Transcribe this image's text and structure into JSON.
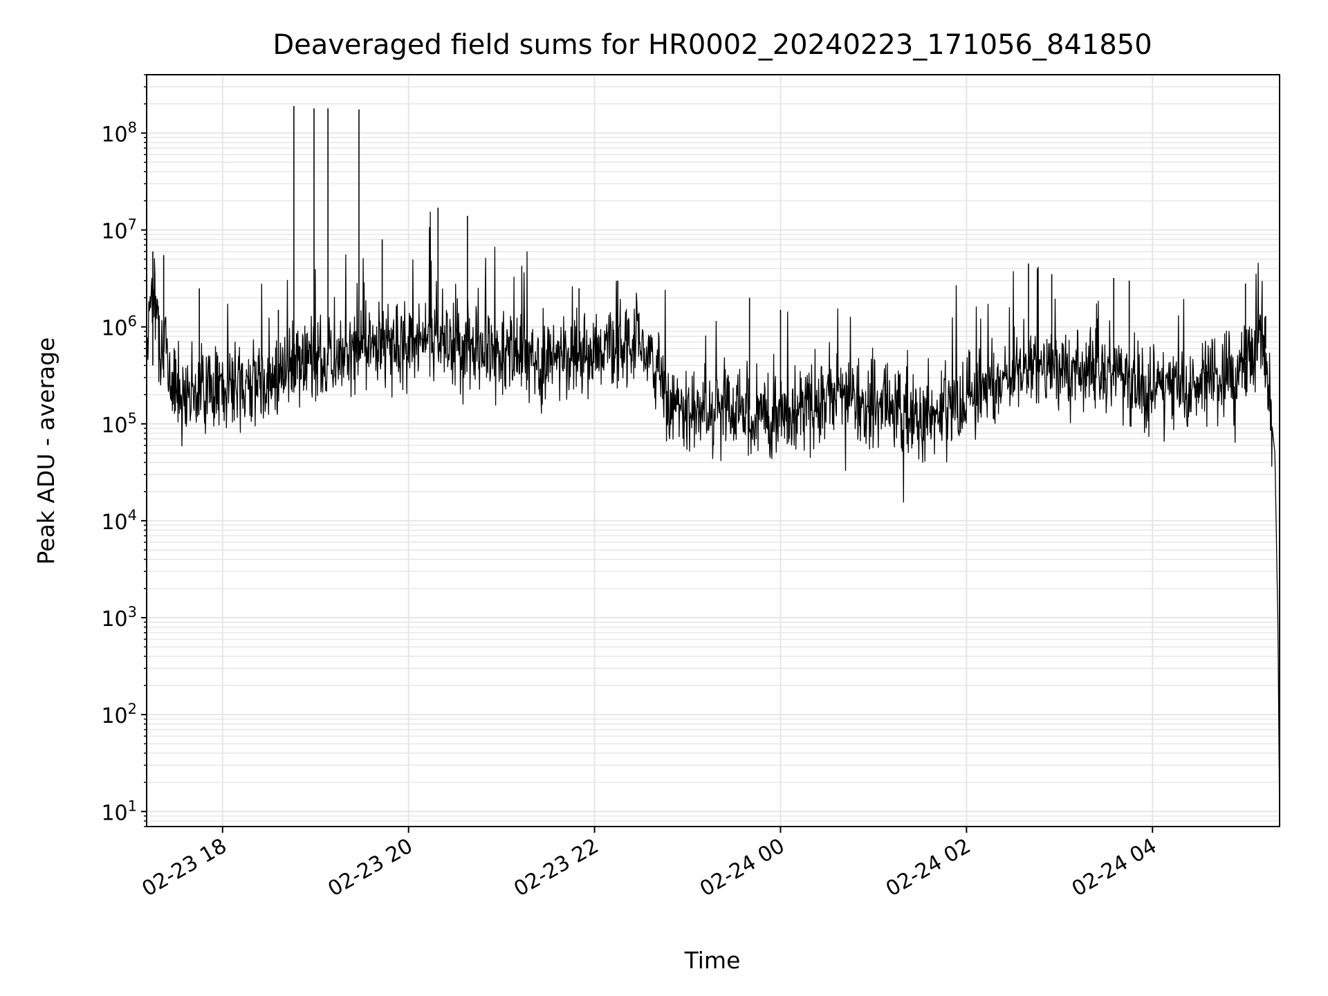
{
  "chart_data": {
    "type": "line",
    "title": "Deaveraged field sums for HR0002_20240223_171056_841850",
    "xlabel": "Time",
    "ylabel": "Peak ADU - average",
    "yscale": "log",
    "ylim": [
      7,
      400000000
    ],
    "xlim": [
      "2024-02-23 17:11",
      "2024-02-24 05:22"
    ],
    "grid": true,
    "line_color": "#000000",
    "grid_color": "#e6e6e6",
    "x_ticks": [
      {
        "t": "2024-02-23 18:00",
        "label": "02-23 18"
      },
      {
        "t": "2024-02-23 20:00",
        "label": "02-23 20"
      },
      {
        "t": "2024-02-23 22:00",
        "label": "02-23 22"
      },
      {
        "t": "2024-02-24 00:00",
        "label": "02-24 00"
      },
      {
        "t": "2024-02-24 02:00",
        "label": "02-24 02"
      },
      {
        "t": "2024-02-24 04:00",
        "label": "02-24 04"
      }
    ],
    "y_ticks": [
      {
        "value": 10,
        "base": "10",
        "exp": "1"
      },
      {
        "value": 100,
        "base": "10",
        "exp": "2"
      },
      {
        "value": 1000,
        "base": "10",
        "exp": "3"
      },
      {
        "value": 10000,
        "base": "10",
        "exp": "4"
      },
      {
        "value": 100000,
        "base": "10",
        "exp": "5"
      },
      {
        "value": 1000000,
        "base": "10",
        "exp": "6"
      },
      {
        "value": 10000000,
        "base": "10",
        "exp": "7"
      },
      {
        "value": 100000000,
        "base": "10",
        "exp": "8"
      }
    ],
    "series": [
      {
        "x": [
          "2024-02-23 17:11",
          "2024-02-23 17:14",
          "2024-02-23 17:17",
          "2024-02-23 17:20",
          "2024-02-23 17:25",
          "2024-02-23 17:30",
          "2024-02-23 17:40",
          "2024-02-23 17:50",
          "2024-02-23 18:00",
          "2024-02-23 18:10",
          "2024-02-23 18:20",
          "2024-02-23 18:35",
          "2024-02-23 18:45",
          "2024-02-23 18:47",
          "2024-02-23 18:50",
          "2024-02-23 19:00",
          "2024-02-23 19:05",
          "2024-02-23 19:10",
          "2024-02-23 19:14",
          "2024-02-23 19:18",
          "2024-02-23 19:30",
          "2024-02-23 19:33",
          "2024-02-23 19:36",
          "2024-02-23 19:45",
          "2024-02-23 20:00",
          "2024-02-23 20:15",
          "2024-02-23 20:20",
          "2024-02-23 20:30",
          "2024-02-23 20:45",
          "2024-02-23 21:00",
          "2024-02-23 21:15",
          "2024-02-23 21:30",
          "2024-02-23 21:45",
          "2024-02-23 22:00",
          "2024-02-23 22:15",
          "2024-02-23 22:30",
          "2024-02-23 22:42",
          "2024-02-23 22:48",
          "2024-02-23 23:00",
          "2024-02-23 23:15",
          "2024-02-23 23:30",
          "2024-02-23 23:45",
          "2024-02-24 00:00",
          "2024-02-24 00:15",
          "2024-02-24 00:30",
          "2024-02-24 00:45",
          "2024-02-24 01:00",
          "2024-02-24 01:15",
          "2024-02-24 01:30",
          "2024-02-24 01:45",
          "2024-02-24 02:00",
          "2024-02-24 02:15",
          "2024-02-24 02:30",
          "2024-02-24 02:45",
          "2024-02-24 03:00",
          "2024-02-24 03:15",
          "2024-02-24 03:30",
          "2024-02-24 03:45",
          "2024-02-24 04:00",
          "2024-02-24 04:15",
          "2024-02-24 04:30",
          "2024-02-24 04:45",
          "2024-02-24 04:55",
          "2024-02-24 05:05",
          "2024-02-24 05:10",
          "2024-02-24 05:14",
          "2024-02-24 05:17",
          "2024-02-24 05:19",
          "2024-02-24 05:21",
          "2024-02-24 05:22"
        ],
        "y": [
          600000,
          2500000,
          1500000,
          800000,
          400000,
          250000,
          220000,
          250000,
          230000,
          260000,
          280000,
          350000,
          400000,
          380000,
          420000,
          500000,
          450000,
          550000,
          480000,
          500000,
          600000,
          550000,
          620000,
          650000,
          700000,
          750000,
          800000,
          650000,
          600000,
          550000,
          500000,
          450000,
          550000,
          600000,
          650000,
          700000,
          400000,
          150000,
          140000,
          130000,
          140000,
          120000,
          130000,
          160000,
          170000,
          180000,
          150000,
          130000,
          110000,
          140000,
          180000,
          250000,
          300000,
          400000,
          350000,
          400000,
          380000,
          300000,
          260000,
          250000,
          270000,
          300000,
          350000,
          500000,
          700000,
          300000,
          100000,
          50000,
          700,
          8
        ]
      }
    ],
    "spikes": [
      {
        "t": "2024-02-23 17:15",
        "base": 400000,
        "peak": 6000000
      },
      {
        "t": "2024-02-23 17:22",
        "base": 300000,
        "peak": 5500000
      },
      {
        "t": "2024-02-23 17:45",
        "base": 200000,
        "peak": 2500000
      },
      {
        "t": "2024-02-23 18:36",
        "base": 250000,
        "peak": 1500000
      },
      {
        "t": "2024-02-23 18:46",
        "base": 300000,
        "peak": 190000000
      },
      {
        "t": "2024-02-23 18:59",
        "base": 350000,
        "peak": 180000000
      },
      {
        "t": "2024-02-23 19:08",
        "base": 400000,
        "peak": 180000000
      },
      {
        "t": "2024-02-23 19:28",
        "base": 450000,
        "peak": 175000000
      },
      {
        "t": "2024-02-23 19:43",
        "base": 600000,
        "peak": 8000000
      },
      {
        "t": "2024-02-23 20:19",
        "base": 700000,
        "peak": 17000000
      },
      {
        "t": "2024-02-23 20:38",
        "base": 700000,
        "peak": 14000000
      },
      {
        "t": "2024-02-23 21:50",
        "base": 500000,
        "peak": 2500000
      },
      {
        "t": "2024-02-23 22:15",
        "base": 700000,
        "peak": 3000000
      },
      {
        "t": "2024-02-23 23:40",
        "base": 140000,
        "peak": 2000000
      },
      {
        "t": "2024-02-24 00:00",
        "base": 150000,
        "peak": 1500000
      },
      {
        "t": "2024-02-24 02:40",
        "base": 350000,
        "peak": 4500000
      },
      {
        "t": "2024-02-24 02:55",
        "base": 350000,
        "peak": 3500000
      },
      {
        "t": "2024-02-24 03:35",
        "base": 350000,
        "peak": 3200000
      },
      {
        "t": "2024-02-24 03:45",
        "base": 300000,
        "peak": 3000000
      },
      {
        "t": "2024-02-24 05:00",
        "base": 450000,
        "peak": 2800000
      },
      {
        "t": "2024-02-24 05:13",
        "base": 600000,
        "peak": 1300000
      }
    ]
  }
}
